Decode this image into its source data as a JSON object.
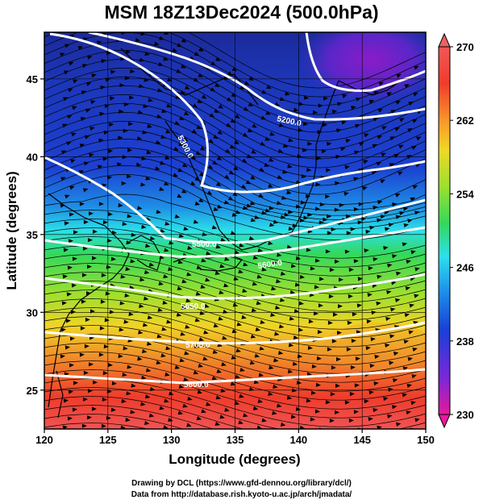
{
  "title": "MSM 18Z13Dec2024 (500.0hPa)",
  "map": {
    "lon_range": [
      120,
      150
    ],
    "lat_range": [
      22.5,
      48
    ],
    "x_label": "Longitude (degrees)",
    "y_label": "Latitude  (degrees)",
    "x_ticks": [
      "120",
      "125",
      "130",
      "135",
      "140",
      "145",
      "150"
    ],
    "y_ticks": [
      "25",
      "30",
      "35",
      "40",
      "45"
    ],
    "grid": true,
    "shaded_field": "temperature",
    "contour_field": "geopotential height",
    "vector_field": "wind"
  },
  "colorbar": {
    "min": 230,
    "max": 270,
    "labels": [
      "270",
      "262",
      "254",
      "246",
      "238",
      "230"
    ],
    "colors": [
      "#e8189a",
      "#7a28d6",
      "#1a3fd8",
      "#1d8ce8",
      "#2de0ee",
      "#34d85a",
      "#9ce02e",
      "#f0d826",
      "#f8962a",
      "#f03c2c",
      "#f05858"
    ]
  },
  "contour_labels": [
    "5200.0",
    "5300.0",
    "5500.0",
    "5600.0",
    "5650.0",
    "5700.0",
    "5800.0"
  ],
  "credits": {
    "line1": "Drawing by DCL (https://www.gfd-dennou.org/library/dcl/)",
    "line2": "Data from http://database.rish.kyoto-u.ac.jp/arch/jmadata/"
  }
}
